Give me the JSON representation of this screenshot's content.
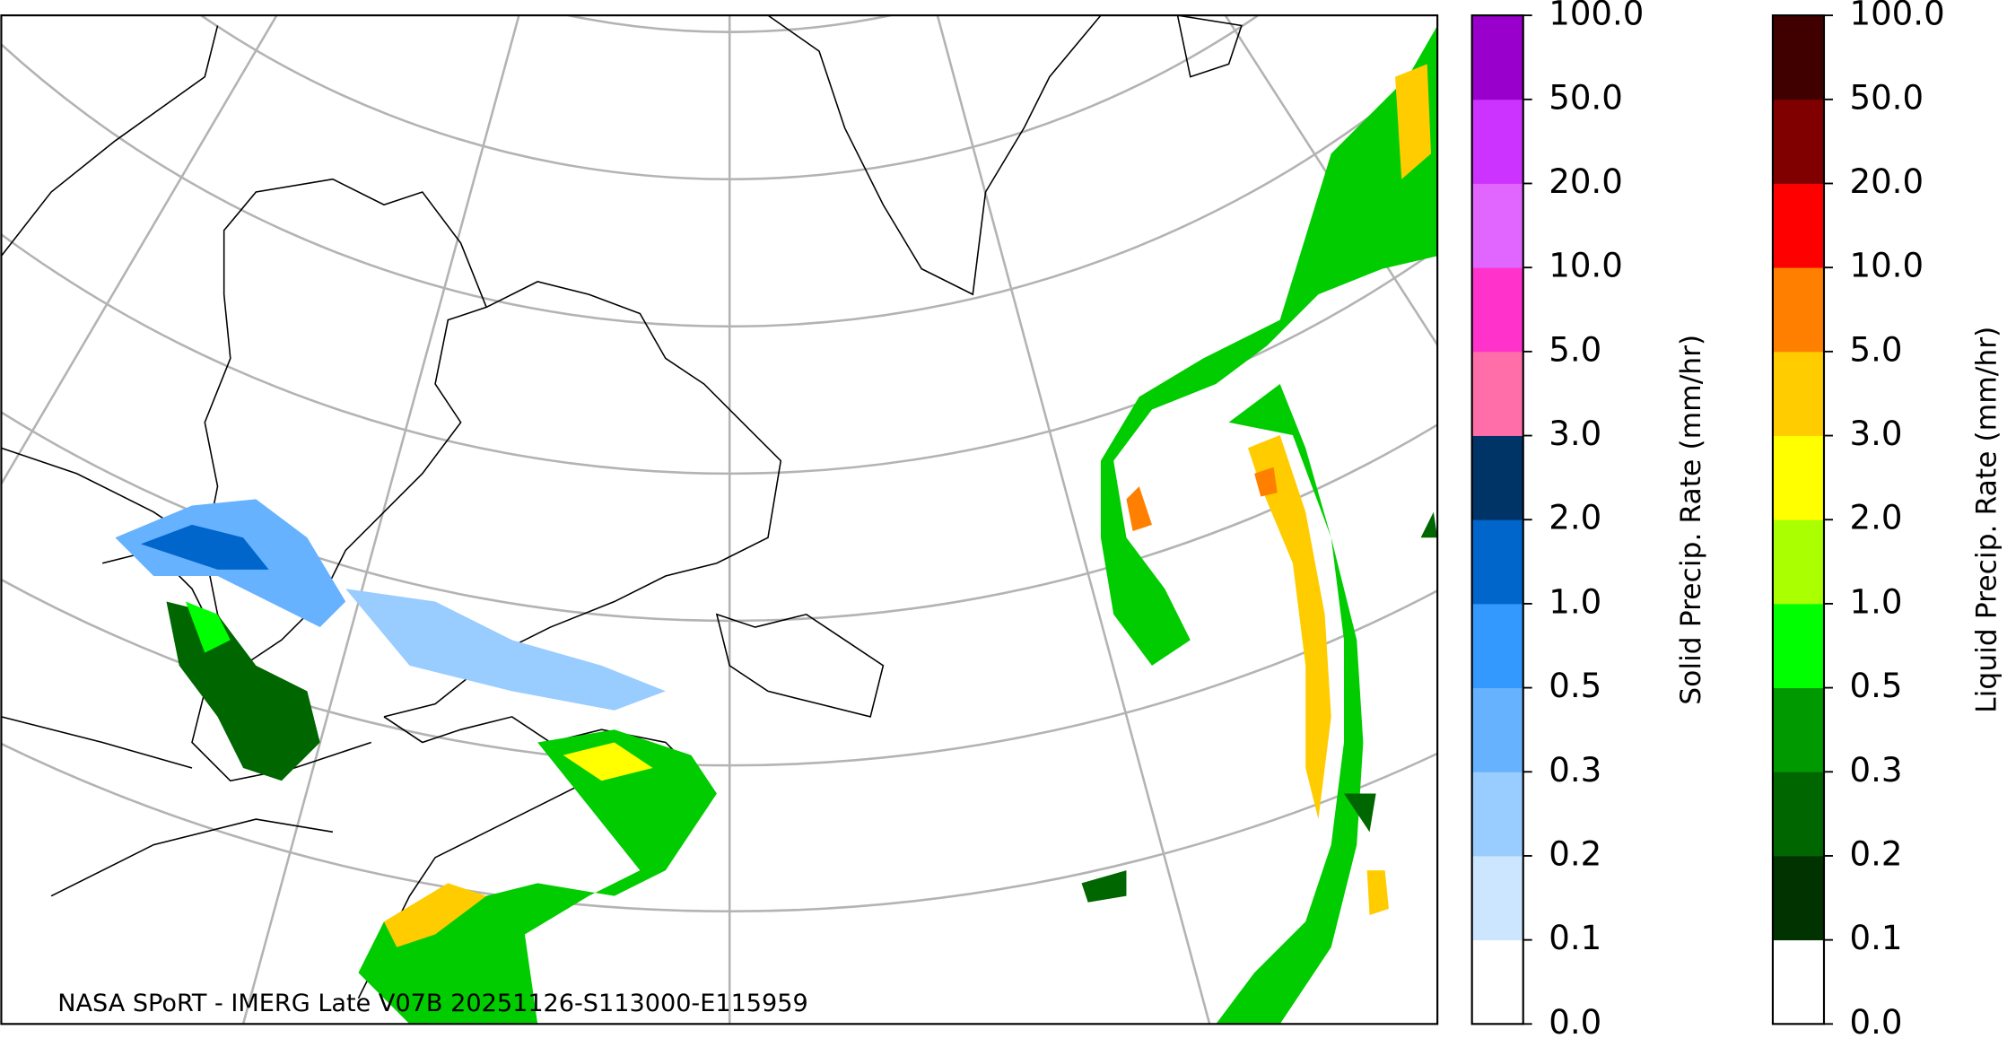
{
  "map": {
    "caption": "NASA SPoRT - IMERG Late V07B 20251126-S113000-E115959"
  },
  "colorbars": [
    {
      "label": "Solid Precip. Rate (mm/hr)",
      "ticks": [
        "0.0",
        "0.1",
        "0.2",
        "0.3",
        "0.5",
        "1.0",
        "2.0",
        "3.0",
        "5.0",
        "10.0",
        "20.0",
        "50.0",
        "100.0"
      ],
      "colors": [
        "#ffffff",
        "#cce6ff",
        "#99ccff",
        "#66b2ff",
        "#3399ff",
        "#0066cc",
        "#003366",
        "#ff6ea8",
        "#ff33cc",
        "#e066ff",
        "#cc33ff",
        "#9900cc"
      ]
    },
    {
      "label": "Liquid Precip. Rate (mm/hr)",
      "ticks": [
        "0.0",
        "0.1",
        "0.2",
        "0.3",
        "0.5",
        "1.0",
        "2.0",
        "3.0",
        "5.0",
        "10.0",
        "20.0",
        "50.0",
        "100.0"
      ],
      "colors": [
        "#ffffff",
        "#003300",
        "#006600",
        "#009900",
        "#00ff00",
        "#aaff00",
        "#ffff00",
        "#ffcc00",
        "#ff8000",
        "#ff0000",
        "#800000",
        "#400000"
      ]
    }
  ]
}
